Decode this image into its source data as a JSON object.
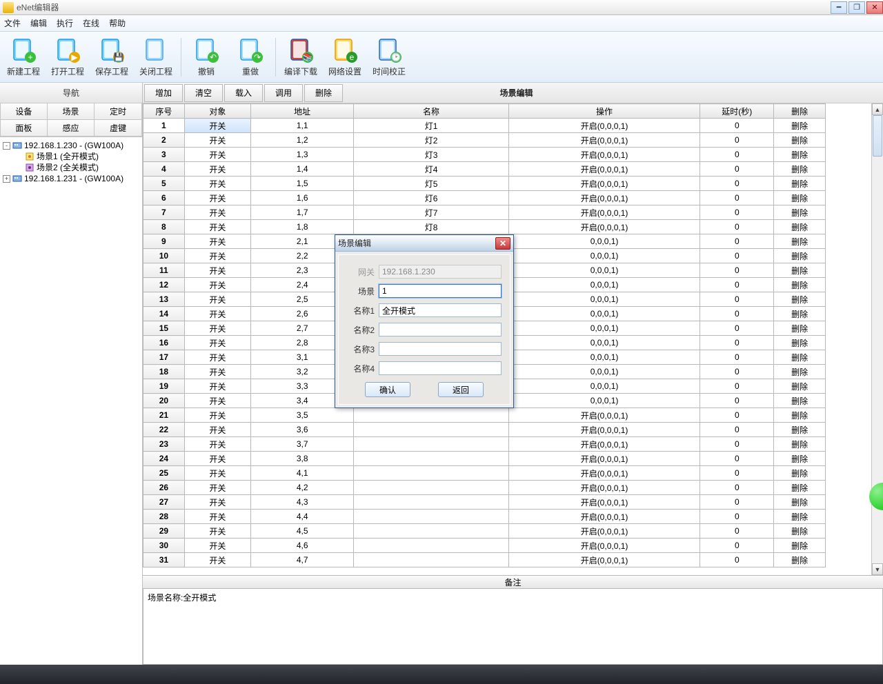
{
  "window": {
    "title": "eNet编辑器"
  },
  "menu": [
    "文件",
    "编辑",
    "执行",
    "在线",
    "帮助"
  ],
  "toolbar": [
    {
      "name": "new-project",
      "label": "新建工程",
      "color1": "#7dd2ff",
      "color2": "#1e9be8",
      "badge": "+",
      "badgeColor": "#3cbf3c"
    },
    {
      "name": "open-project",
      "label": "打开工程",
      "color1": "#7dd2ff",
      "color2": "#1e9be8",
      "badge": "▶",
      "badgeColor": "#e8a800"
    },
    {
      "name": "save-project",
      "label": "保存工程",
      "color1": "#7dd2ff",
      "color2": "#1e9be8",
      "badge": "💾",
      "badgeColor": "#e8a800"
    },
    {
      "name": "close-project",
      "label": "关闭工程",
      "color1": "#9fd6ff",
      "color2": "#4aa8e8",
      "badge": "",
      "badgeColor": ""
    },
    {
      "name": "undo",
      "label": "撤销",
      "color1": "#9fdcff",
      "color2": "#2d9be0",
      "badge": "↶",
      "badgeColor": ""
    },
    {
      "name": "redo",
      "label": "重做",
      "color1": "#9fdcff",
      "color2": "#2d9be0",
      "badge": "↷",
      "badgeColor": ""
    },
    {
      "name": "compile-download",
      "label": "编译下载",
      "color1": "#c44",
      "color2": "#2a5aa8",
      "badge": "📚",
      "badgeColor": ""
    },
    {
      "name": "network-settings",
      "label": "网络设置",
      "color1": "#ffd860",
      "color2": "#e89a00",
      "badge": "e",
      "badgeColor": "#2a9a2a"
    },
    {
      "name": "time-correct",
      "label": "时间校正",
      "color1": "#a4d4ff",
      "color2": "#2a6ab0",
      "badge": "🕑",
      "badgeColor": ""
    }
  ],
  "nav": {
    "header": "导航",
    "tabs": [
      "设备",
      "场景",
      "定时",
      "面板",
      "感应",
      "虚键"
    ],
    "tree": [
      {
        "exp": "-",
        "icon": "gw",
        "label": "192.168.1.230 - (GW100A)",
        "indent": 0
      },
      {
        "exp": "",
        "icon": "scene",
        "label": "场景1 (全开模式)",
        "indent": 1
      },
      {
        "exp": "",
        "icon": "scene2",
        "label": "场景2 (全关模式)",
        "indent": 1
      },
      {
        "exp": "+",
        "icon": "gw",
        "label": "192.168.1.231 - (GW100A)",
        "indent": 0
      }
    ]
  },
  "actions": [
    "增加",
    "清空",
    "载入",
    "调用",
    "删除"
  ],
  "panelTitle": "场景编辑",
  "columns": [
    "序号",
    "对象",
    "地址",
    "名称",
    "操作",
    "延时(秒)",
    "删除"
  ],
  "rows": [
    {
      "n": 1,
      "obj": "开关",
      "addr": "1,1",
      "name": "灯1",
      "op": "开启(0,0,0,1)",
      "delay": "0",
      "del": "删除"
    },
    {
      "n": 2,
      "obj": "开关",
      "addr": "1,2",
      "name": "灯2",
      "op": "开启(0,0,0,1)",
      "delay": "0",
      "del": "删除"
    },
    {
      "n": 3,
      "obj": "开关",
      "addr": "1,3",
      "name": "灯3",
      "op": "开启(0,0,0,1)",
      "delay": "0",
      "del": "删除"
    },
    {
      "n": 4,
      "obj": "开关",
      "addr": "1,4",
      "name": "灯4",
      "op": "开启(0,0,0,1)",
      "delay": "0",
      "del": "删除"
    },
    {
      "n": 5,
      "obj": "开关",
      "addr": "1,5",
      "name": "灯5",
      "op": "开启(0,0,0,1)",
      "delay": "0",
      "del": "删除"
    },
    {
      "n": 6,
      "obj": "开关",
      "addr": "1,6",
      "name": "灯6",
      "op": "开启(0,0,0,1)",
      "delay": "0",
      "del": "删除"
    },
    {
      "n": 7,
      "obj": "开关",
      "addr": "1,7",
      "name": "灯7",
      "op": "开启(0,0,0,1)",
      "delay": "0",
      "del": "删除"
    },
    {
      "n": 8,
      "obj": "开关",
      "addr": "1,8",
      "name": "灯8",
      "op": "开启(0,0,0,1)",
      "delay": "0",
      "del": "删除"
    },
    {
      "n": 9,
      "obj": "开关",
      "addr": "2,1",
      "name": "",
      "op": "0,0,0,1)",
      "delay": "0",
      "del": "删除"
    },
    {
      "n": 10,
      "obj": "开关",
      "addr": "2,2",
      "name": "",
      "op": "0,0,0,1)",
      "delay": "0",
      "del": "删除"
    },
    {
      "n": 11,
      "obj": "开关",
      "addr": "2,3",
      "name": "",
      "op": "0,0,0,1)",
      "delay": "0",
      "del": "删除"
    },
    {
      "n": 12,
      "obj": "开关",
      "addr": "2,4",
      "name": "",
      "op": "0,0,0,1)",
      "delay": "0",
      "del": "删除"
    },
    {
      "n": 13,
      "obj": "开关",
      "addr": "2,5",
      "name": "",
      "op": "0,0,0,1)",
      "delay": "0",
      "del": "删除"
    },
    {
      "n": 14,
      "obj": "开关",
      "addr": "2,6",
      "name": "",
      "op": "0,0,0,1)",
      "delay": "0",
      "del": "删除"
    },
    {
      "n": 15,
      "obj": "开关",
      "addr": "2,7",
      "name": "",
      "op": "0,0,0,1)",
      "delay": "0",
      "del": "删除"
    },
    {
      "n": 16,
      "obj": "开关",
      "addr": "2,8",
      "name": "",
      "op": "0,0,0,1)",
      "delay": "0",
      "del": "删除"
    },
    {
      "n": 17,
      "obj": "开关",
      "addr": "3,1",
      "name": "",
      "op": "0,0,0,1)",
      "delay": "0",
      "del": "删除"
    },
    {
      "n": 18,
      "obj": "开关",
      "addr": "3,2",
      "name": "",
      "op": "0,0,0,1)",
      "delay": "0",
      "del": "删除"
    },
    {
      "n": 19,
      "obj": "开关",
      "addr": "3,3",
      "name": "",
      "op": "0,0,0,1)",
      "delay": "0",
      "del": "删除"
    },
    {
      "n": 20,
      "obj": "开关",
      "addr": "3,4",
      "name": "",
      "op": "0,0,0,1)",
      "delay": "0",
      "del": "删除"
    },
    {
      "n": 21,
      "obj": "开关",
      "addr": "3,5",
      "name": "",
      "op": "开启(0,0,0,1)",
      "delay": "0",
      "del": "删除"
    },
    {
      "n": 22,
      "obj": "开关",
      "addr": "3,6",
      "name": "",
      "op": "开启(0,0,0,1)",
      "delay": "0",
      "del": "删除"
    },
    {
      "n": 23,
      "obj": "开关",
      "addr": "3,7",
      "name": "",
      "op": "开启(0,0,0,1)",
      "delay": "0",
      "del": "删除"
    },
    {
      "n": 24,
      "obj": "开关",
      "addr": "3,8",
      "name": "",
      "op": "开启(0,0,0,1)",
      "delay": "0",
      "del": "删除"
    },
    {
      "n": 25,
      "obj": "开关",
      "addr": "4,1",
      "name": "",
      "op": "开启(0,0,0,1)",
      "delay": "0",
      "del": "删除"
    },
    {
      "n": 26,
      "obj": "开关",
      "addr": "4,2",
      "name": "",
      "op": "开启(0,0,0,1)",
      "delay": "0",
      "del": "删除"
    },
    {
      "n": 27,
      "obj": "开关",
      "addr": "4,3",
      "name": "",
      "op": "开启(0,0,0,1)",
      "delay": "0",
      "del": "删除"
    },
    {
      "n": 28,
      "obj": "开关",
      "addr": "4,4",
      "name": "",
      "op": "开启(0,0,0,1)",
      "delay": "0",
      "del": "删除"
    },
    {
      "n": 29,
      "obj": "开关",
      "addr": "4,5",
      "name": "",
      "op": "开启(0,0,0,1)",
      "delay": "0",
      "del": "删除"
    },
    {
      "n": 30,
      "obj": "开关",
      "addr": "4,6",
      "name": "",
      "op": "开启(0,0,0,1)",
      "delay": "0",
      "del": "删除"
    },
    {
      "n": 31,
      "obj": "开关",
      "addr": "4,7",
      "name": "",
      "op": "开启(0,0,0,1)",
      "delay": "0",
      "del": "删除"
    }
  ],
  "remark": {
    "header": "备注",
    "text": "场景名称:全开模式"
  },
  "dialog": {
    "title": "场景编辑",
    "fields": [
      {
        "label": "网关",
        "value": "192.168.1.230",
        "disabled": true
      },
      {
        "label": "场景",
        "value": "1",
        "focus": true
      },
      {
        "label": "名称1",
        "value": "全开模式"
      },
      {
        "label": "名称2",
        "value": ""
      },
      {
        "label": "名称3",
        "value": ""
      },
      {
        "label": "名称4",
        "value": ""
      }
    ],
    "ok": "确认",
    "cancel": "返回"
  },
  "colors": {
    "accent": "#3a77c2",
    "gridBorder": "#b8b8b8"
  }
}
